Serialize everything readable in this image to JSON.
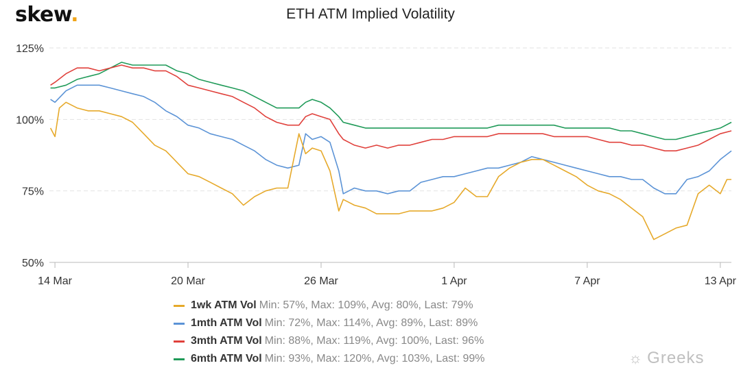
{
  "logo": {
    "text": "skew",
    "dot": "."
  },
  "watermark": {
    "icon": "wechat-icon",
    "text": "Greeks"
  },
  "colors": {
    "1wk": "#e6a92a",
    "1mth": "#5b93d6",
    "3mth": "#e0403b",
    "6mth": "#1f9a58",
    "grid": "#e2e2e2",
    "axis": "#b8b8b8"
  },
  "legend": [
    {
      "name": "1wk ATM Vol",
      "stats": "Min: 57%, Max: 109%, Avg: 80%, Last: 79%"
    },
    {
      "name": "1mth ATM Vol",
      "stats": "Min: 72%, Max: 114%, Avg: 89%, Last: 89%"
    },
    {
      "name": "3mth ATM Vol",
      "stats": "Min: 88%, Max: 119%, Avg: 100%, Last: 96%"
    },
    {
      "name": "6mth ATM Vol",
      "stats": "Min: 93%, Max: 120%, Avg: 103%, Last: 99%"
    }
  ],
  "chart_data": {
    "type": "line",
    "title": "ETH ATM Implied Volatility",
    "xlabel": "",
    "ylabel": "",
    "x_unit": "days since 14 Mar",
    "xlim": [
      -0.25,
      30.5
    ],
    "ylim": [
      50,
      125
    ],
    "y_ticks": [
      50,
      75,
      100,
      125
    ],
    "y_tick_labels": [
      "50%",
      "75%",
      "100%",
      "125%"
    ],
    "x_ticks": [
      0,
      6,
      12,
      18,
      24,
      30
    ],
    "x_tick_labels": [
      "14 Mar",
      "20 Mar",
      "26 Mar",
      "1 Apr",
      "7 Apr",
      "13 Apr"
    ],
    "grid": "horizontal dashed",
    "legend_position": "bottom",
    "series": [
      {
        "name": "1wk ATM Vol",
        "key": "1wk",
        "x": [
          -0.2,
          0,
          0.2,
          0.5,
          1,
          1.5,
          2,
          2.5,
          3,
          3.5,
          4,
          4.5,
          5,
          5.5,
          6,
          6.5,
          7,
          7.5,
          8,
          8.5,
          9,
          9.5,
          10,
          10.5,
          11,
          11.3,
          11.6,
          12,
          12.4,
          12.8,
          13,
          13.5,
          14,
          14.5,
          15,
          15.5,
          16,
          16.5,
          17,
          17.5,
          18,
          18.5,
          19,
          19.5,
          20,
          20.5,
          21,
          21.5,
          22,
          22.5,
          23,
          23.5,
          24,
          24.5,
          25,
          25.5,
          26,
          26.5,
          27,
          27.5,
          28,
          28.5,
          29,
          29.5,
          30,
          30.3,
          30.5
        ],
        "y": [
          97,
          94,
          104,
          106,
          104,
          103,
          103,
          102,
          101,
          99,
          95,
          91,
          89,
          85,
          81,
          80,
          78,
          76,
          74,
          70,
          73,
          75,
          76,
          76,
          95,
          88,
          90,
          89,
          82,
          68,
          72,
          70,
          69,
          67,
          67,
          67,
          68,
          68,
          68,
          69,
          71,
          76,
          73,
          73,
          80,
          83,
          85,
          86,
          86,
          84,
          82,
          80,
          77,
          75,
          74,
          72,
          69,
          66,
          58,
          60,
          62,
          63,
          74,
          77,
          74,
          79,
          79
        ]
      },
      {
        "name": "1mth ATM Vol",
        "key": "1mth",
        "x": [
          -0.2,
          0,
          0.5,
          1,
          1.5,
          2,
          2.5,
          3,
          3.5,
          4,
          4.5,
          5,
          5.5,
          6,
          6.5,
          7,
          7.5,
          8,
          8.5,
          9,
          9.5,
          10,
          10.5,
          11,
          11.3,
          11.6,
          12,
          12.4,
          12.8,
          13,
          13.5,
          14,
          14.5,
          15,
          15.5,
          16,
          16.5,
          17,
          17.5,
          18,
          18.5,
          19,
          19.5,
          20,
          20.5,
          21,
          21.5,
          22,
          22.5,
          23,
          23.5,
          24,
          24.5,
          25,
          25.5,
          26,
          26.5,
          27,
          27.5,
          28,
          28.5,
          29,
          29.5,
          30,
          30.5
        ],
        "y": [
          107,
          106,
          110,
          112,
          112,
          112,
          111,
          110,
          109,
          108,
          106,
          103,
          101,
          98,
          97,
          95,
          94,
          93,
          91,
          89,
          86,
          84,
          83,
          84,
          95,
          93,
          94,
          92,
          82,
          74,
          76,
          75,
          75,
          74,
          75,
          75,
          78,
          79,
          80,
          80,
          81,
          82,
          83,
          83,
          84,
          85,
          87,
          86,
          85,
          84,
          83,
          82,
          81,
          80,
          80,
          79,
          79,
          76,
          74,
          74,
          79,
          80,
          82,
          86,
          89
        ]
      },
      {
        "name": "3mth ATM Vol",
        "key": "3mth",
        "x": [
          -0.2,
          0,
          0.5,
          1,
          1.5,
          2,
          2.5,
          3,
          3.5,
          4,
          4.5,
          5,
          5.5,
          6,
          6.5,
          7,
          7.5,
          8,
          8.5,
          9,
          9.5,
          10,
          10.5,
          11,
          11.3,
          11.6,
          12,
          12.4,
          12.8,
          13,
          13.5,
          14,
          14.5,
          15,
          15.5,
          16,
          16.5,
          17,
          17.5,
          18,
          18.5,
          19,
          19.5,
          20,
          20.5,
          21,
          21.5,
          22,
          22.5,
          23,
          23.5,
          24,
          24.5,
          25,
          25.5,
          26,
          26.5,
          27,
          27.5,
          28,
          28.5,
          29,
          29.5,
          30,
          30.5
        ],
        "y": [
          112,
          113,
          116,
          118,
          118,
          117,
          118,
          119,
          118,
          118,
          117,
          117,
          115,
          112,
          111,
          110,
          109,
          108,
          106,
          104,
          101,
          99,
          98,
          98,
          101,
          102,
          101,
          100,
          95,
          93,
          91,
          90,
          91,
          90,
          91,
          91,
          92,
          93,
          93,
          94,
          94,
          94,
          94,
          95,
          95,
          95,
          95,
          95,
          94,
          94,
          94,
          94,
          93,
          92,
          92,
          91,
          91,
          90,
          89,
          89,
          90,
          91,
          93,
          95,
          96
        ]
      },
      {
        "name": "6mth ATM Vol",
        "key": "6mth",
        "x": [
          -0.2,
          0,
          0.5,
          1,
          1.5,
          2,
          2.5,
          3,
          3.5,
          4,
          4.5,
          5,
          5.5,
          6,
          6.5,
          7,
          7.5,
          8,
          8.5,
          9,
          9.5,
          10,
          10.5,
          11,
          11.3,
          11.6,
          12,
          12.4,
          12.8,
          13,
          13.5,
          14,
          14.5,
          15,
          15.5,
          16,
          16.5,
          17,
          17.5,
          18,
          18.5,
          19,
          19.5,
          20,
          20.5,
          21,
          21.5,
          22,
          22.5,
          23,
          23.5,
          24,
          24.5,
          25,
          25.5,
          26,
          26.5,
          27,
          27.5,
          28,
          28.5,
          29,
          29.5,
          30,
          30.5
        ],
        "y": [
          111,
          111,
          112,
          114,
          115,
          116,
          118,
          120,
          119,
          119,
          119,
          119,
          117,
          116,
          114,
          113,
          112,
          111,
          110,
          108,
          106,
          104,
          104,
          104,
          106,
          107,
          106,
          104,
          101,
          99,
          98,
          97,
          97,
          97,
          97,
          97,
          97,
          97,
          97,
          97,
          97,
          97,
          97,
          98,
          98,
          98,
          98,
          98,
          98,
          97,
          97,
          97,
          97,
          97,
          96,
          96,
          95,
          94,
          93,
          93,
          94,
          95,
          96,
          97,
          99
        ]
      }
    ]
  }
}
